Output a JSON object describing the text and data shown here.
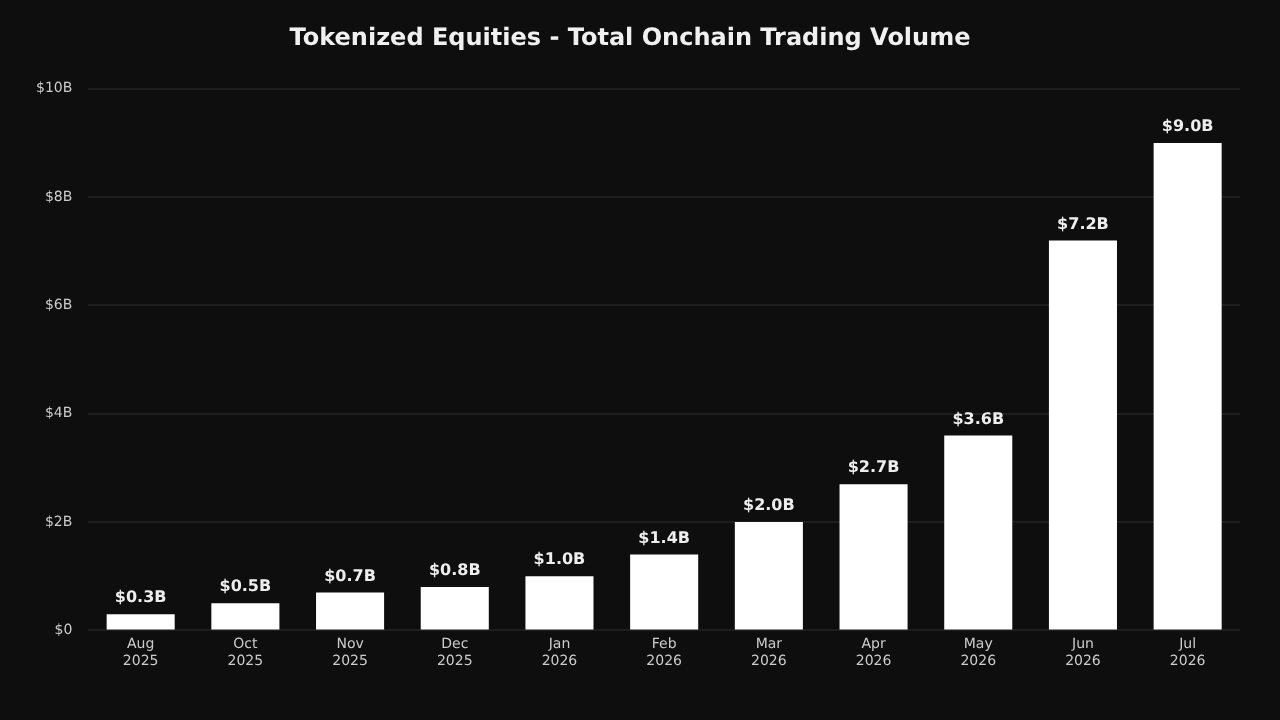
{
  "chart_data": {
    "type": "bar",
    "title": "Tokenized Equities - Total Onchain Trading Volume",
    "categories": [
      "Aug 2025",
      "Oct 2025",
      "Nov 2025",
      "Dec 2025",
      "Jan 2026",
      "Feb 2026",
      "Mar 2026",
      "Apr 2026",
      "May 2026",
      "Jun 2026",
      "Jul 2026"
    ],
    "values": [
      0.3,
      0.5,
      0.7,
      0.8,
      1.0,
      1.4,
      2.0,
      2.7,
      3.6,
      7.2,
      9.0
    ],
    "value_labels": [
      "$0.3B",
      "$0.5B",
      "$0.7B",
      "$0.8B",
      "$1.0B",
      "$1.4B",
      "$2.0B",
      "$2.7B",
      "$3.6B",
      "$7.2B",
      "$9.0B"
    ],
    "color": "#ffffff",
    "ylim": [
      0,
      10
    ],
    "yticks": [
      {
        "value": 0,
        "label": "$0"
      },
      {
        "value": 2,
        "label": "$2B"
      },
      {
        "value": 4,
        "label": "$4B"
      },
      {
        "value": 6,
        "label": "$6B"
      },
      {
        "value": 8,
        "label": "$8B"
      },
      {
        "value": 10,
        "label": "$10B"
      }
    ],
    "grid": "y"
  }
}
